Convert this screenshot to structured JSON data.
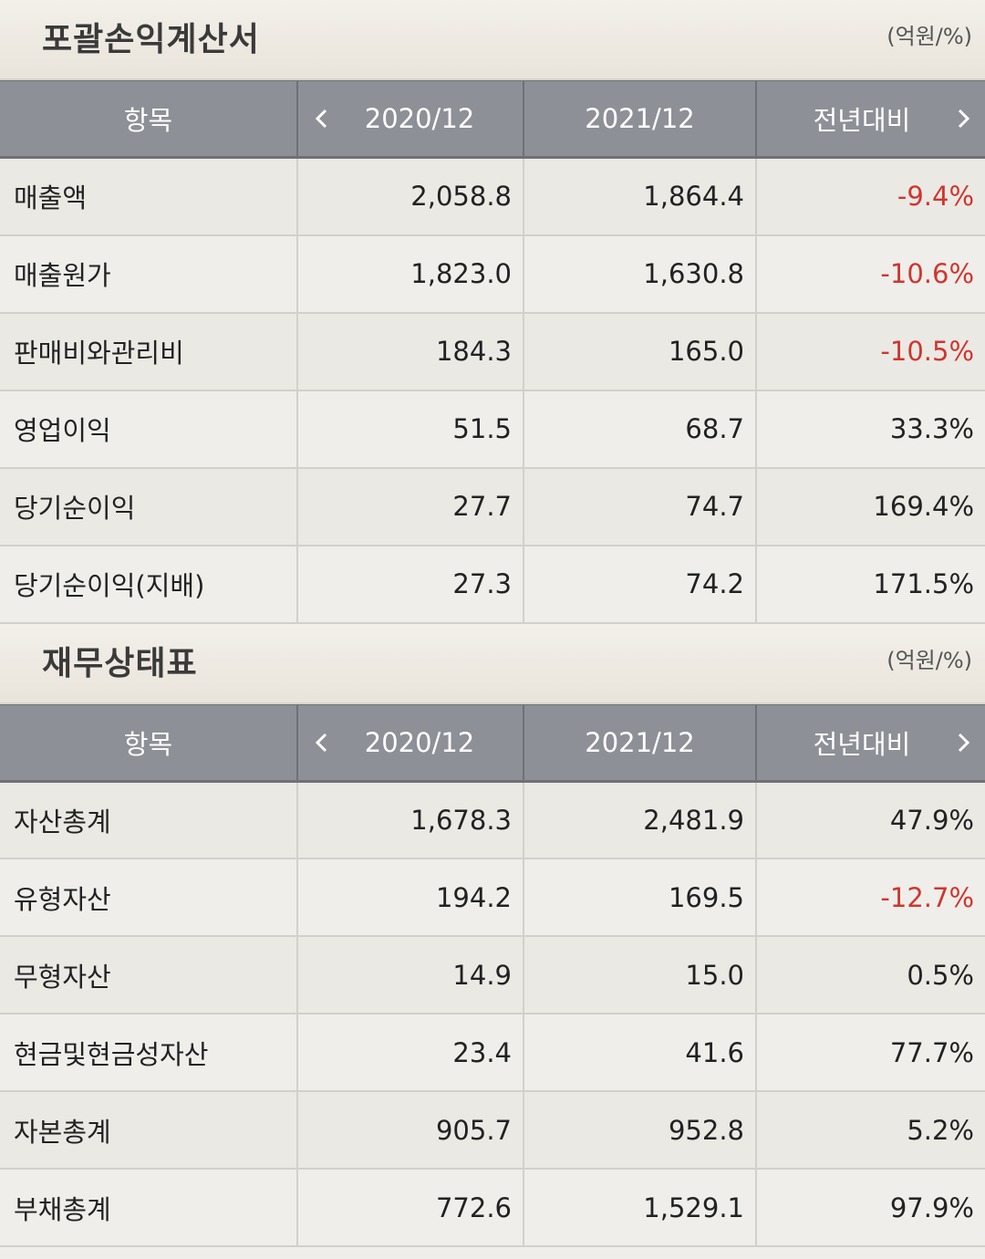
{
  "income": {
    "title": "포괄손익계산서",
    "unit": "(억원/%)",
    "headers": {
      "item": "항목",
      "year1": "2020/12",
      "year2": "2021/12",
      "change": "전년대비"
    },
    "rows": [
      {
        "label": "매출액",
        "v2020": "2,058.8",
        "v2021": "1,864.4",
        "change": "-9.4%"
      },
      {
        "label": "매출원가",
        "v2020": "1,823.0",
        "v2021": "1,630.8",
        "change": "-10.6%"
      },
      {
        "label": "판매비와관리비",
        "v2020": "184.3",
        "v2021": "165.0",
        "change": "-10.5%"
      },
      {
        "label": "영업이익",
        "v2020": "51.5",
        "v2021": "68.7",
        "change": "33.3%"
      },
      {
        "label": "당기순이익",
        "v2020": "27.7",
        "v2021": "74.7",
        "change": "169.4%"
      },
      {
        "label": "당기순이익(지배)",
        "v2020": "27.3",
        "v2021": "74.2",
        "change": "171.5%"
      }
    ]
  },
  "balance": {
    "title": "재무상태표",
    "unit": "(억원/%)",
    "headers": {
      "item": "항목",
      "year1": "2020/12",
      "year2": "2021/12",
      "change": "전년대비"
    },
    "rows": [
      {
        "label": "자산총계",
        "v2020": "1,678.3",
        "v2021": "2,481.9",
        "change": "47.9%"
      },
      {
        "label": "유형자산",
        "v2020": "194.2",
        "v2021": "169.5",
        "change": "-12.7%"
      },
      {
        "label": "무형자산",
        "v2020": "14.9",
        "v2021": "15.0",
        "change": "0.5%"
      },
      {
        "label": "현금및현금성자산",
        "v2020": "23.4",
        "v2021": "41.6",
        "change": "77.7%"
      },
      {
        "label": "자본총계",
        "v2020": "905.7",
        "v2021": "952.8",
        "change": "5.2%"
      },
      {
        "label": "부채총계",
        "v2020": "772.6",
        "v2021": "1,529.1",
        "change": "97.9%"
      }
    ]
  },
  "colors": {
    "negative": "#d0352f",
    "header_bg": "#8d9096"
  }
}
